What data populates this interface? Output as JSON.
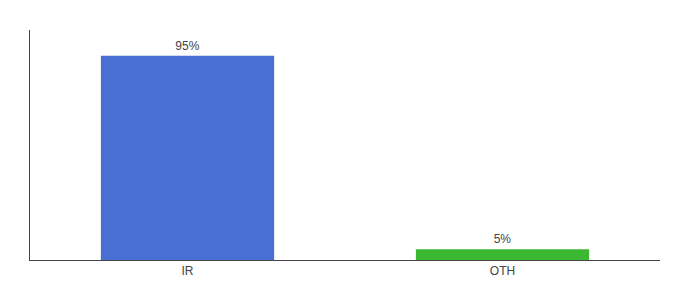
{
  "chart_data": {
    "type": "bar",
    "categories": [
      "IR",
      "OTH"
    ],
    "values": [
      95,
      5
    ],
    "value_labels": [
      "95%",
      "5%"
    ],
    "data_labels": true,
    "colors": [
      "#4a6fd4",
      "#3cb832"
    ],
    "ylim": [
      0,
      107
    ],
    "grid": false,
    "tick_labels": "x"
  }
}
